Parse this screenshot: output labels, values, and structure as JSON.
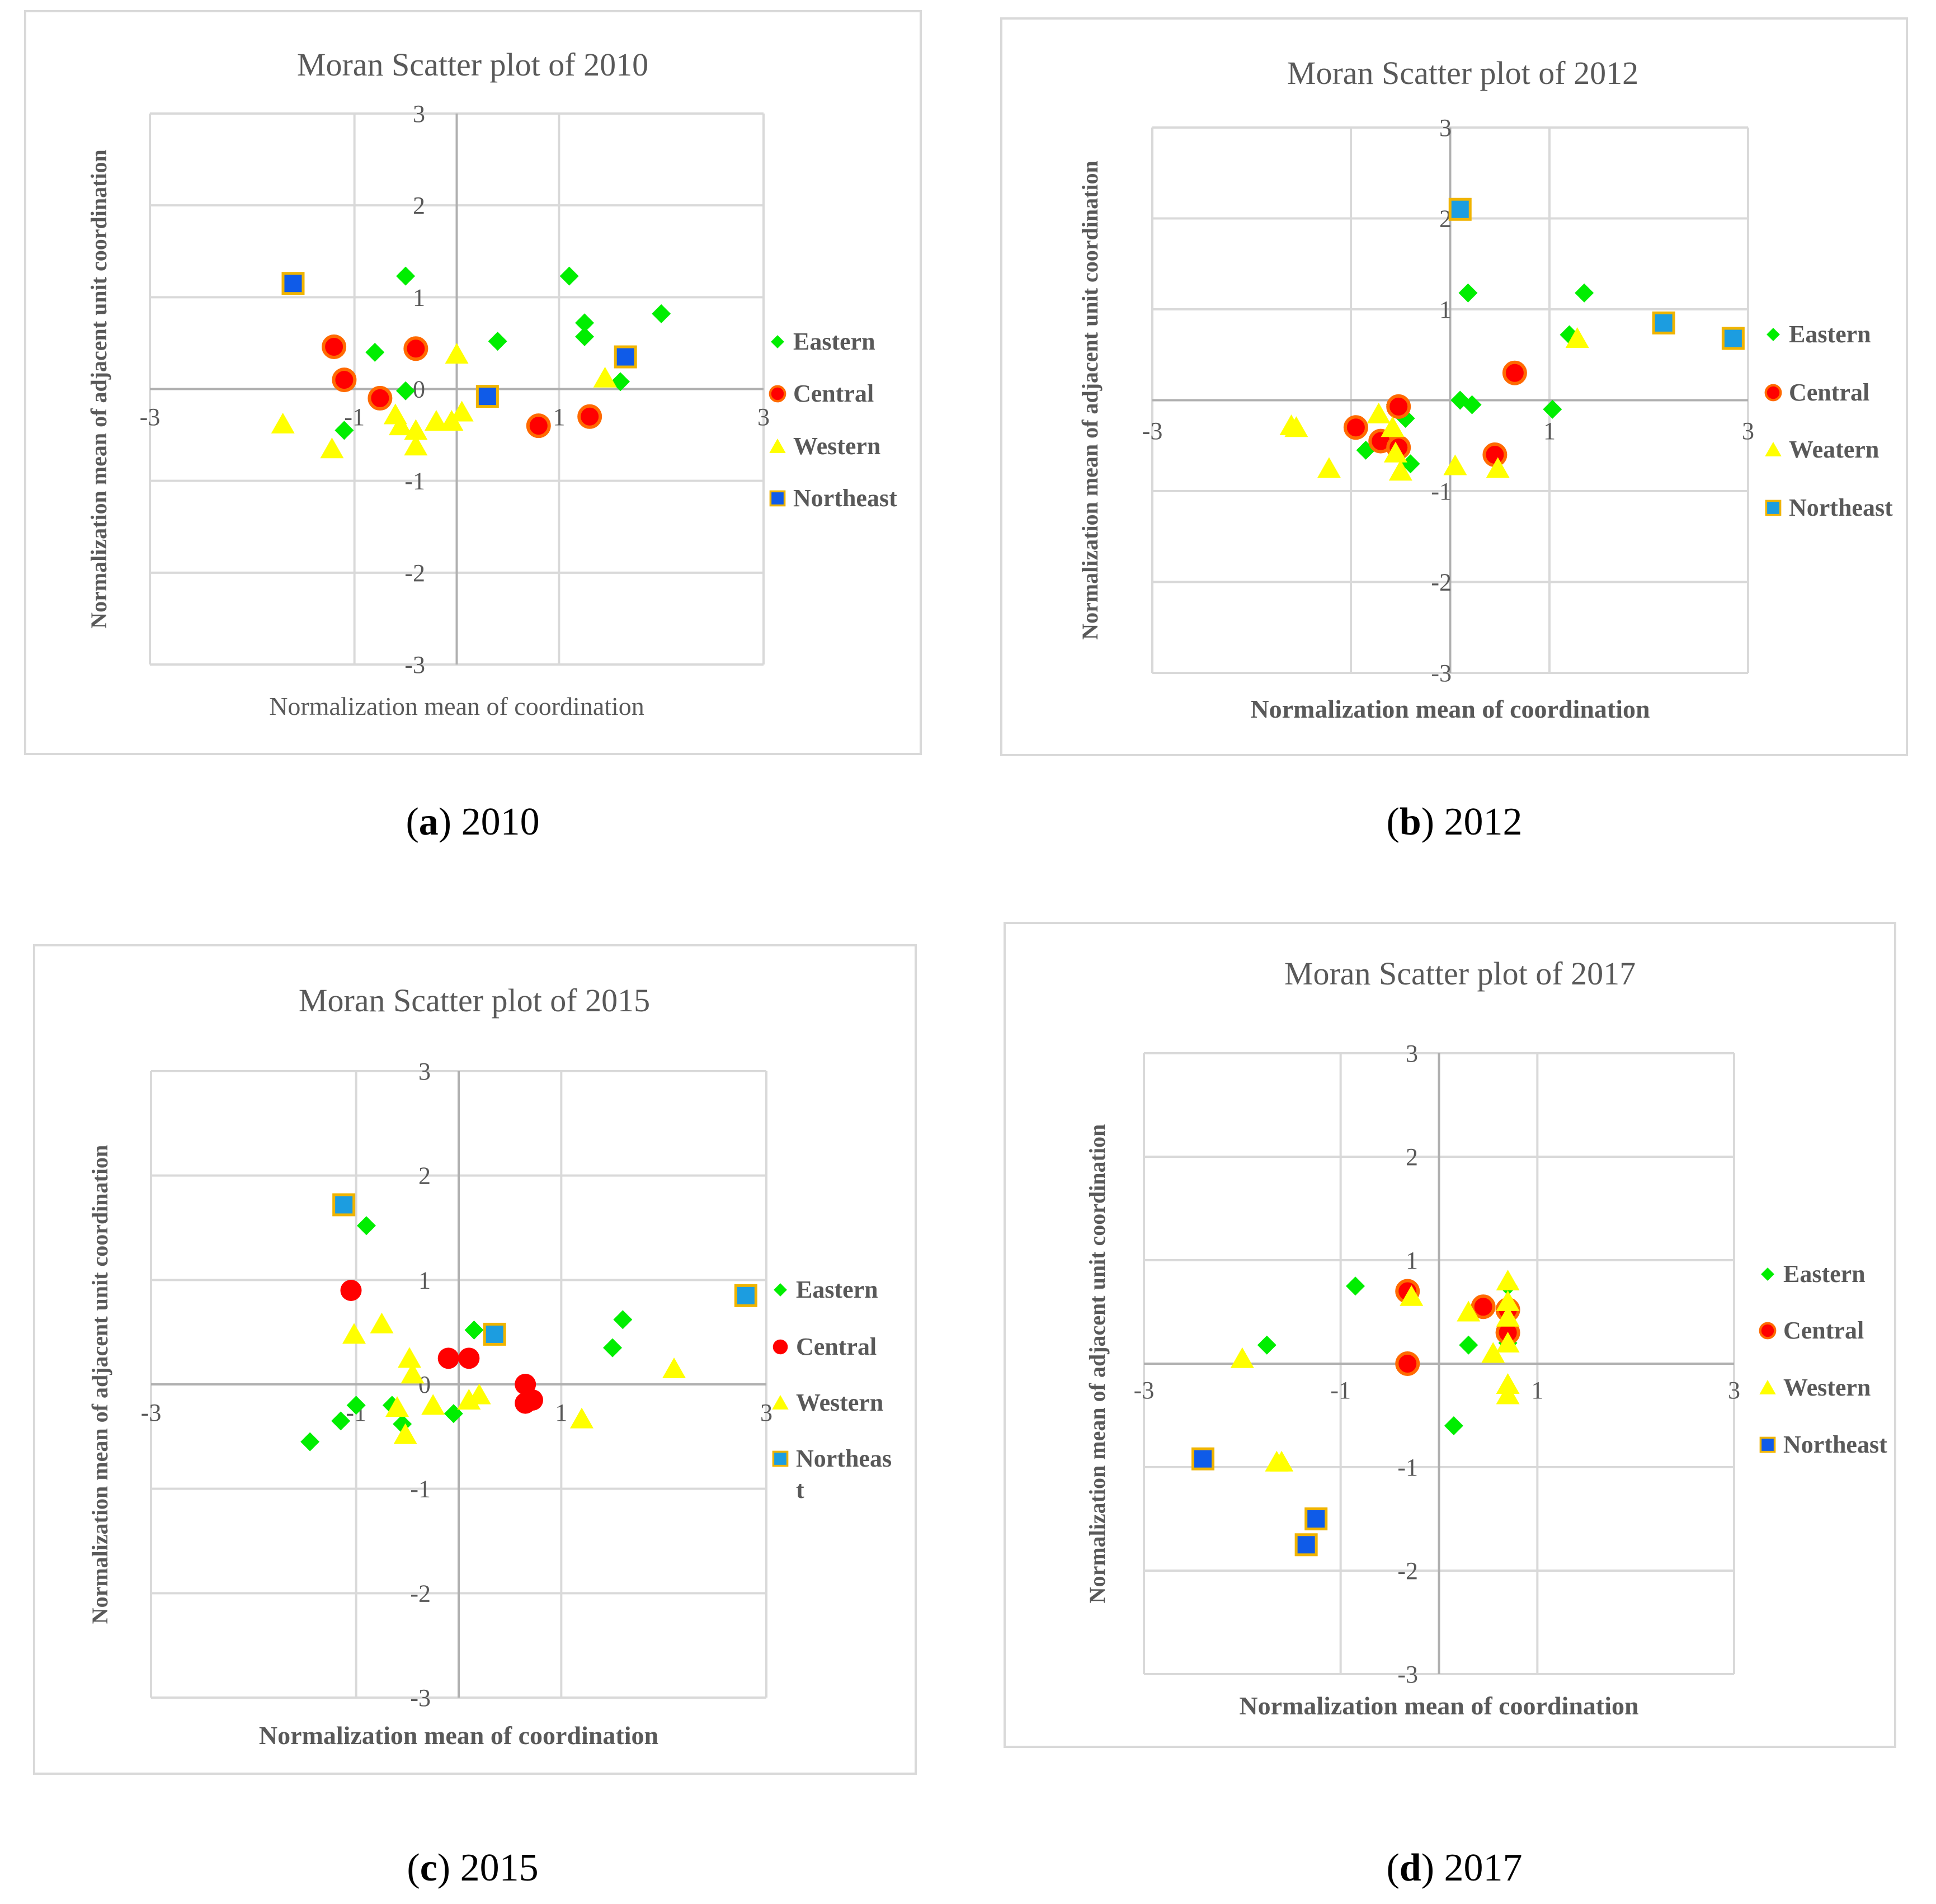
{
  "captions": [
    {
      "letter": "a",
      "year": "2010"
    },
    {
      "letter": "b",
      "year": "2012"
    },
    {
      "letter": "c",
      "year": "2015"
    },
    {
      "letter": "d",
      "year": "2017"
    }
  ],
  "colors": {
    "eastern": "#00ee00",
    "central_fill": "#ff0000",
    "central_stroke": "#ff6a00",
    "western": "#ffff00",
    "northeast_dark": "#0f5be8",
    "northeast_light": "#1c9de0",
    "northeast_stroke": "#f0b400",
    "grid": "#d9d9d9",
    "axis": "#b0b0b0",
    "title": "#595959",
    "label": "#595959"
  },
  "chart_data": [
    {
      "type": "scatter",
      "title": "Moran Scatter plot of 2010",
      "xlabel": "Normalization mean of  coordination",
      "ylabel": "Normalization mean of adjacent unit coordination",
      "xlim": [
        -3,
        3
      ],
      "ylim": [
        -3,
        3
      ],
      "xticks": [
        "-3",
        "-1",
        "1",
        "3"
      ],
      "yticks": [
        "3",
        "2",
        "1",
        "0",
        "-1",
        "-2",
        "-3"
      ],
      "grid": true,
      "bold_labels": false,
      "legend_position": "right",
      "series": [
        {
          "name": "Eastern",
          "marker": "diamond",
          "points": [
            [
              -0.5,
              1.23
            ],
            [
              1.1,
              1.23
            ],
            [
              1.25,
              0.72
            ],
            [
              1.25,
              0.57
            ],
            [
              2.0,
              0.82
            ],
            [
              1.6,
              0.08
            ],
            [
              0.4,
              0.52
            ],
            [
              -0.8,
              0.4
            ],
            [
              -0.5,
              -0.02
            ],
            [
              -1.1,
              -0.45
            ]
          ]
        },
        {
          "name": "Central",
          "marker": "circle",
          "points": [
            [
              -1.2,
              0.46
            ],
            [
              -0.4,
              0.44
            ],
            [
              -1.1,
              0.1
            ],
            [
              -0.75,
              -0.1
            ],
            [
              0.8,
              -0.4
            ],
            [
              1.3,
              -0.3
            ]
          ]
        },
        {
          "name": "Western",
          "marker": "triangle",
          "points": [
            [
              -1.7,
              -0.38
            ],
            [
              -1.22,
              -0.65
            ],
            [
              -0.6,
              -0.28
            ],
            [
              -0.55,
              -0.4
            ],
            [
              -0.4,
              -0.45
            ],
            [
              -0.4,
              -0.62
            ],
            [
              -0.2,
              -0.35
            ],
            [
              -0.05,
              -0.35
            ],
            [
              0.05,
              -0.25
            ],
            [
              0.0,
              0.38
            ],
            [
              1.45,
              0.12
            ]
          ]
        },
        {
          "name": "Northeast",
          "marker": "square",
          "variant": "dark",
          "points": [
            [
              -1.6,
              1.15
            ],
            [
              0.3,
              -0.08
            ],
            [
              1.65,
              0.35
            ]
          ]
        }
      ]
    },
    {
      "type": "scatter",
      "title": "Moran Scatter plot of 2012",
      "xlabel": "Normalization mean of  coordination",
      "ylabel": "Normalization mean of adjacent unit coordination",
      "xlim": [
        -3,
        3
      ],
      "ylim": [
        -3,
        3
      ],
      "xticks": [
        "-3",
        "1",
        "3"
      ],
      "yticks": [
        "3",
        "2",
        "1",
        "-1",
        "-2",
        "-3"
      ],
      "grid": true,
      "bold_labels": true,
      "legend_position": "right",
      "series": [
        {
          "name": "Eastern",
          "marker": "diamond",
          "points": [
            [
              0.18,
              1.18
            ],
            [
              1.35,
              1.18
            ],
            [
              1.2,
              0.72
            ],
            [
              0.1,
              0.0
            ],
            [
              0.22,
              -0.05
            ],
            [
              1.03,
              -0.1
            ],
            [
              -0.85,
              -0.55
            ],
            [
              -0.45,
              -0.2
            ],
            [
              -0.4,
              -0.7
            ],
            [
              -0.55,
              -0.05
            ]
          ]
        },
        {
          "name": "Central",
          "marker": "circle",
          "points": [
            [
              0.65,
              0.3
            ],
            [
              -0.95,
              -0.3
            ],
            [
              -0.7,
              -0.45
            ],
            [
              -0.52,
              -0.52
            ],
            [
              -0.52,
              -0.07
            ],
            [
              0.45,
              -0.6
            ]
          ]
        },
        {
          "name": "Weatern",
          "marker": "triangle",
          "points": [
            [
              1.28,
              0.68
            ],
            [
              -1.6,
              -0.28
            ],
            [
              -1.55,
              -0.3
            ],
            [
              -1.22,
              -0.75
            ],
            [
              -0.72,
              -0.15
            ],
            [
              -0.58,
              -0.3
            ],
            [
              -0.55,
              -0.58
            ],
            [
              -0.5,
              -0.78
            ],
            [
              0.05,
              -0.72
            ],
            [
              0.48,
              -0.75
            ]
          ]
        },
        {
          "name": "Northeast",
          "marker": "square",
          "variant": "light",
          "points": [
            [
              0.1,
              2.1
            ],
            [
              2.15,
              0.85
            ],
            [
              2.85,
              0.68
            ]
          ]
        }
      ]
    },
    {
      "type": "scatter",
      "title": "Moran Scatter plot of 2015",
      "xlabel": "Normalization mean of  coordination",
      "ylabel": "Normalization mean of adjacent unit coordination",
      "xlim": [
        -3,
        3
      ],
      "ylim": [
        -3,
        3
      ],
      "xticks": [
        "-3",
        "-1",
        "1",
        "3"
      ],
      "yticks": [
        "3",
        "2",
        "1",
        "0",
        "-1",
        "-2",
        "-3"
      ],
      "grid": true,
      "bold_labels": true,
      "legend_position": "right",
      "legend_wrap_last": [
        "Northeas",
        "t"
      ],
      "series": [
        {
          "name": "Eastern",
          "marker": "diamond",
          "points": [
            [
              -0.9,
              1.52
            ],
            [
              0.15,
              0.52
            ],
            [
              1.6,
              0.62
            ],
            [
              1.5,
              0.35
            ],
            [
              -1.0,
              -0.2
            ],
            [
              -1.15,
              -0.35
            ],
            [
              -0.65,
              -0.2
            ],
            [
              -0.55,
              -0.38
            ],
            [
              -1.45,
              -0.55
            ],
            [
              -0.05,
              -0.28
            ]
          ]
        },
        {
          "name": "Central",
          "marker": "circle",
          "plain": true,
          "points": [
            [
              -1.05,
              0.9
            ],
            [
              -0.1,
              0.25
            ],
            [
              0.1,
              0.25
            ],
            [
              0.65,
              0.0
            ],
            [
              0.65,
              -0.18
            ],
            [
              0.72,
              -0.15
            ]
          ]
        },
        {
          "name": "Western",
          "marker": "triangle",
          "points": [
            [
              -1.02,
              0.48
            ],
            [
              -0.75,
              0.58
            ],
            [
              -0.48,
              0.25
            ],
            [
              -0.45,
              0.1
            ],
            [
              -0.6,
              -0.22
            ],
            [
              -0.25,
              -0.2
            ],
            [
              0.1,
              -0.15
            ],
            [
              0.2,
              -0.1
            ],
            [
              -0.52,
              -0.48
            ],
            [
              1.2,
              -0.33
            ],
            [
              2.1,
              0.15
            ]
          ]
        },
        {
          "name": "Northeast",
          "marker": "square",
          "variant": "light",
          "points": [
            [
              -1.12,
              1.72
            ],
            [
              0.35,
              0.48
            ],
            [
              2.8,
              0.85
            ]
          ]
        }
      ]
    },
    {
      "type": "scatter",
      "title": "Moran Scatter plot of 2017",
      "xlabel": "Normalization mean of  coordination",
      "ylabel": "Normalization mean of adjacent unit coordination",
      "xlim": [
        -3,
        3
      ],
      "ylim": [
        -3,
        3
      ],
      "xticks": [
        "-3",
        "-1",
        "1",
        "3"
      ],
      "yticks": [
        "3",
        "2",
        "1",
        "-1",
        "-2",
        "-3"
      ],
      "grid": true,
      "bold_labels": true,
      "legend_position": "right",
      "series": [
        {
          "name": "Eastern",
          "marker": "diamond",
          "points": [
            [
              -0.85,
              0.75
            ],
            [
              -1.75,
              0.18
            ],
            [
              0.3,
              0.18
            ],
            [
              0.15,
              -0.6
            ],
            [
              0.7,
              0.75
            ],
            [
              0.7,
              0.3
            ],
            [
              0.7,
              0.2
            ]
          ]
        },
        {
          "name": "Central",
          "marker": "circle",
          "points": [
            [
              -0.32,
              0.7
            ],
            [
              0.45,
              0.55
            ],
            [
              0.7,
              0.52
            ],
            [
              0.7,
              0.3
            ],
            [
              -0.32,
              0.0
            ]
          ]
        },
        {
          "name": "Western",
          "marker": "triangle",
          "points": [
            [
              -0.28,
              0.65
            ],
            [
              0.3,
              0.5
            ],
            [
              0.7,
              0.8
            ],
            [
              0.7,
              0.6
            ],
            [
              0.7,
              0.45
            ],
            [
              0.7,
              0.2
            ],
            [
              0.55,
              0.1
            ],
            [
              0.7,
              -0.2
            ],
            [
              0.7,
              -0.3
            ],
            [
              -2.0,
              0.05
            ],
            [
              -1.65,
              -0.95
            ],
            [
              -1.6,
              -0.95
            ]
          ]
        },
        {
          "name": "Northeast",
          "marker": "square",
          "variant": "dark",
          "points": [
            [
              -2.4,
              -0.92
            ],
            [
              -1.25,
              -1.5
            ],
            [
              -1.35,
              -1.75
            ]
          ]
        }
      ]
    }
  ]
}
